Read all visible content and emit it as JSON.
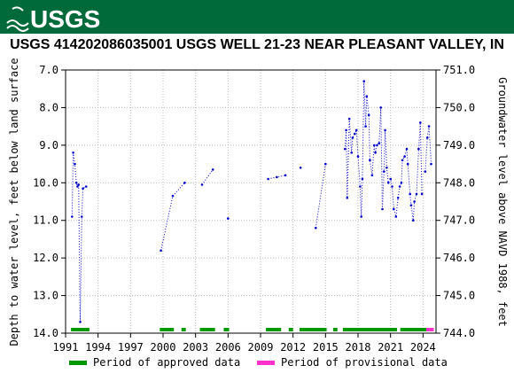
{
  "header": {
    "logo_text": "USGS"
  },
  "chart_data": {
    "type": "scatter",
    "title": "USGS 414202086035001 USGS WELL 21-23 NEAR PLEASANT VALLEY, IN",
    "ylabel": "Depth to water level, feet below land surface",
    "y2label": "Groundwater level above NAVD 1988, feet",
    "xlim": [
      1991,
      2025.2
    ],
    "ylim": [
      7.0,
      14.0
    ],
    "y_inverted": true,
    "y2lim": [
      751.0,
      744.0
    ],
    "x_ticks": [
      1991,
      1994,
      1997,
      2000,
      2003,
      2006,
      2009,
      2012,
      2015,
      2018,
      2021,
      2024
    ],
    "x_tick_labels": [
      "1991",
      "1994",
      "1997",
      "2000",
      "2003",
      "2006",
      "2009",
      "2012",
      "2015",
      "2018",
      "2021",
      "2024"
    ],
    "y_ticks": [
      7,
      8,
      9,
      10,
      11,
      12,
      13,
      14
    ],
    "y_tick_labels": [
      "7.0",
      "8.0",
      "9.0",
      "10.0",
      "11.0",
      "12.0",
      "13.0",
      "14.0"
    ],
    "y2_ticks": [
      751,
      750,
      749,
      748,
      747,
      746,
      745,
      744
    ],
    "y2_tick_labels": [
      "751.0",
      "750.0",
      "749.0",
      "748.0",
      "747.0",
      "746.0",
      "745.0",
      "744.0"
    ],
    "grid": true,
    "series": [
      {
        "name": "Period of approved data",
        "color": "#009900",
        "x": [
          1991.6,
          1991.7,
          1991.85,
          1992.0,
          1992.1,
          1992.2,
          1992.35,
          1992.5,
          1992.6,
          1992.9,
          1999.8,
          2000.9,
          2002.0,
          2003.6,
          2004.6,
          2006.0,
          2009.7,
          2010.5,
          2011.3,
          2012.7,
          2014.1,
          2015.0,
          2016.8,
          2016.9,
          2017.0,
          2017.2,
          2017.4,
          2017.5,
          2017.7,
          2017.85,
          2018.0,
          2018.2,
          2018.3,
          2018.4,
          2018.55,
          2018.7,
          2018.8,
          2019.0,
          2019.1,
          2019.3,
          2019.5,
          2019.6,
          2019.75,
          2019.95,
          2020.1,
          2020.25,
          2020.4,
          2020.5,
          2020.65,
          2020.8,
          2021.0,
          2021.15,
          2021.3,
          2021.5,
          2021.7,
          2021.85,
          2022.0,
          2022.1,
          2022.3,
          2022.5,
          2022.6,
          2022.8,
          2022.9,
          2023.1,
          2023.2,
          2023.4,
          2023.6,
          2023.75,
          2023.9
        ],
        "y": [
          10.9,
          9.2,
          9.5,
          10.0,
          10.1,
          10.05,
          13.7,
          10.9,
          10.15,
          10.1,
          11.8,
          10.35,
          10.0,
          10.05,
          9.65,
          10.95,
          9.9,
          9.85,
          9.8,
          9.6,
          11.2,
          9.5,
          9.1,
          8.6,
          10.4,
          8.3,
          9.2,
          8.8,
          8.7,
          8.6,
          9.3,
          10.1,
          10.9,
          9.9,
          7.3,
          8.5,
          7.7,
          8.2,
          9.4,
          9.8,
          9.0,
          9.2,
          9.0,
          8.95,
          8.0,
          10.7,
          9.7,
          8.6,
          9.6,
          10.0,
          9.9,
          10.1,
          10.7,
          10.9,
          10.4,
          10.1,
          10.0,
          9.4,
          9.3,
          9.1,
          9.5,
          10.3,
          10.6,
          11.0,
          10.5,
          10.3,
          9.1,
          8.4,
          10.3
        ]
      },
      {
        "name": "Period of provisional data",
        "color": "#ff33cc",
        "x": [
          2024.2,
          2024.4,
          2024.55,
          2024.75
        ],
        "y": [
          9.7,
          8.8,
          8.5,
          9.5
        ]
      }
    ],
    "approved_periods": [
      [
        1991.5,
        1993.2
      ],
      [
        1999.7,
        2001.0
      ],
      [
        2001.7,
        2002.1
      ],
      [
        2003.4,
        2004.8
      ],
      [
        2005.6,
        2006.1
      ],
      [
        2009.5,
        2010.9
      ],
      [
        2011.6,
        2012.0
      ],
      [
        2012.6,
        2015.1
      ],
      [
        2015.7,
        2016.1
      ],
      [
        2016.6,
        2021.6
      ],
      [
        2021.9,
        2024.3
      ]
    ],
    "provisional_periods": [
      [
        2024.3,
        2025.0
      ]
    ],
    "legend": {
      "placement": "bottom",
      "entries": [
        {
          "label": "Period of approved data",
          "color": "#009900"
        },
        {
          "label": "Period of provisional data",
          "color": "#ff33cc"
        }
      ]
    }
  }
}
